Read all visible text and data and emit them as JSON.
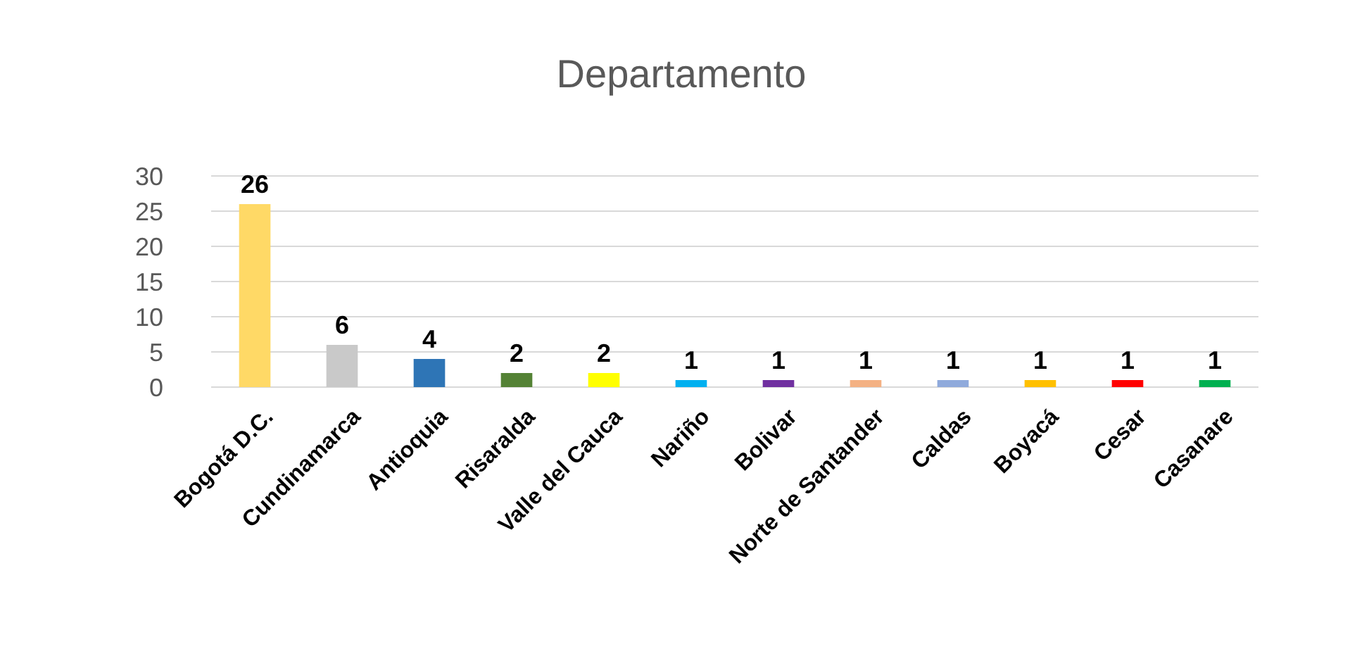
{
  "chart_data": {
    "type": "bar",
    "title": "Departamento",
    "categories": [
      "Bogotá D.C.",
      "Cundinamarca",
      "Antioquia",
      "Risaralda",
      "Valle del Cauca",
      "Nariño",
      "Bolivar",
      "Norte de Santander",
      "Caldas",
      "Boyacá",
      "Cesar",
      "Casanare"
    ],
    "values": [
      26,
      6,
      4,
      2,
      2,
      1,
      1,
      1,
      1,
      1,
      1,
      1
    ],
    "colors": [
      "#ffd966",
      "#c9c9c9",
      "#2e75b6",
      "#548235",
      "#ffff00",
      "#00b0f0",
      "#7030a0",
      "#f4b183",
      "#8faadc",
      "#ffc000",
      "#ff0000",
      "#00b050"
    ],
    "ylim": [
      0,
      30
    ],
    "yticks": [
      0,
      5,
      10,
      15,
      20,
      25,
      30
    ],
    "grid": "y",
    "data_labels": true
  }
}
